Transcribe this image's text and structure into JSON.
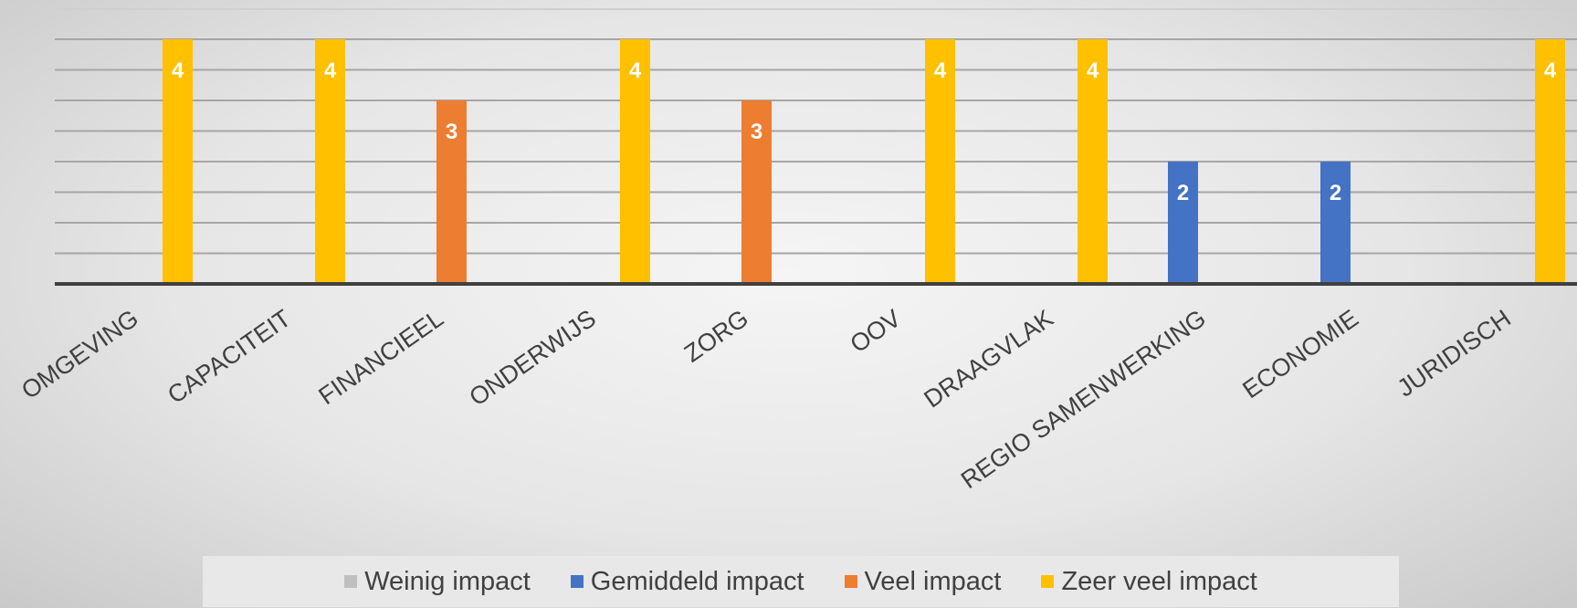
{
  "chart_data": {
    "type": "bar",
    "title": "",
    "xlabel": "",
    "ylabel": "",
    "ylim": [
      0,
      4.3
    ],
    "grid": true,
    "legend_position": "bottom",
    "categories": [
      "OMGEVING",
      "CAPACITEIT",
      "FINANCIEEL",
      "ONDERWIJS",
      "ZORG",
      "OOV",
      "DRAAGVLAK",
      "REGIO SAMENWERKING",
      "ECONOMIE",
      "JURIDISCH"
    ],
    "series": [
      {
        "name": "Weinig impact",
        "color": "#bfbfbf",
        "values": [
          null,
          null,
          null,
          null,
          null,
          null,
          null,
          null,
          null,
          null
        ]
      },
      {
        "name": "Gemiddeld impact",
        "color": "#4472c4",
        "values": [
          null,
          null,
          null,
          null,
          null,
          null,
          null,
          2,
          2,
          null
        ]
      },
      {
        "name": "Veel impact",
        "color": "#ed7d31",
        "values": [
          null,
          null,
          3,
          null,
          3,
          null,
          null,
          null,
          null,
          null
        ]
      },
      {
        "name": "Zeer veel impact",
        "color": "#ffc000",
        "values": [
          4,
          4,
          null,
          4,
          null,
          4,
          4,
          null,
          null,
          4
        ]
      }
    ]
  }
}
